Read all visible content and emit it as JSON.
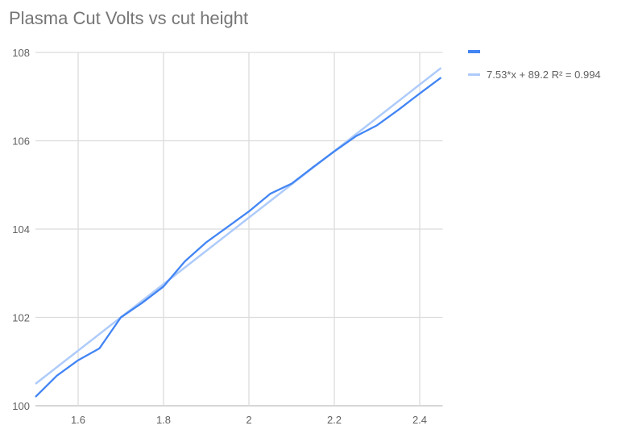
{
  "chart_data": {
    "type": "line",
    "title": "Plasma Cut Volts vs cut height",
    "xlabel": "",
    "ylabel": "",
    "xlim": [
      1.5,
      2.45
    ],
    "ylim": [
      100,
      108
    ],
    "x_ticks": [
      "1.6",
      "1.8",
      "2",
      "2.2",
      "2.4"
    ],
    "y_ticks": [
      "100",
      "102",
      "104",
      "106",
      "108"
    ],
    "grid": true,
    "legend_position": "right",
    "series": [
      {
        "name": "",
        "color": "#4285f4",
        "x": [
          1.5,
          1.55,
          1.6,
          1.65,
          1.7,
          1.75,
          1.8,
          1.85,
          1.9,
          1.95,
          2.0,
          2.05,
          2.1,
          2.15,
          2.2,
          2.25,
          2.3,
          2.35,
          2.4,
          2.45
        ],
        "y": [
          100.2,
          100.68,
          101.03,
          101.3,
          102.0,
          102.33,
          102.7,
          103.27,
          103.7,
          104.05,
          104.4,
          104.8,
          105.03,
          105.4,
          105.76,
          106.1,
          106.35,
          106.7,
          107.07,
          107.43
        ]
      }
    ],
    "trendline": {
      "label": "7.53*x + 89.2 R² = 0.994",
      "slope": 7.53,
      "intercept": 89.2,
      "r2": 0.994,
      "color": "#aecbfa"
    }
  }
}
